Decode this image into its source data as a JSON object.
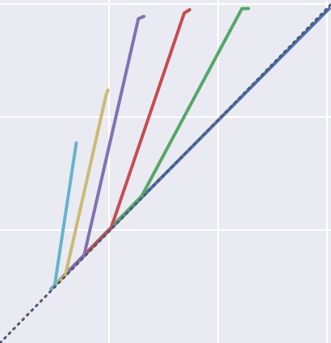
{
  "chart_data": {
    "type": "line",
    "title": "",
    "xlabel": "",
    "ylabel": "",
    "xlim": [
      0,
      3.04
    ],
    "ylim": [
      0,
      3.0
    ],
    "grid": true,
    "x_gridlines": [
      1,
      2,
      3
    ],
    "y_gridlines": [
      1,
      2,
      3
    ],
    "background_color": "#eaeaf2",
    "grid_color": "#ffffff",
    "series": [
      {
        "color": "#4c72b0",
        "style": "solid",
        "x": [
          0.47,
          3.02
        ],
        "y": [
          0.48,
          2.96
        ]
      },
      {
        "color": "#55a868",
        "style": "solid",
        "x": [
          0.47,
          1.3,
          2.22,
          2.28
        ],
        "y": [
          0.48,
          1.3,
          2.96,
          2.96
        ]
      },
      {
        "color": "#c44e52",
        "style": "solid",
        "x": [
          0.47,
          1.02,
          1.69,
          1.74
        ],
        "y": [
          0.48,
          1.02,
          2.92,
          2.95
        ]
      },
      {
        "color": "#8172b2",
        "style": "solid",
        "x": [
          0.47,
          0.77,
          1.27,
          1.32
        ],
        "y": [
          0.48,
          0.77,
          2.87,
          2.89
        ]
      },
      {
        "color": "#ccb974",
        "style": "solid",
        "x": [
          0.47,
          0.6,
          0.97,
          0.99
        ],
        "y": [
          0.48,
          0.6,
          2.18,
          2.24
        ]
      },
      {
        "color": "#64b5cd",
        "style": "solid",
        "x": [
          0.47,
          0.5,
          0.7
        ],
        "y": [
          0.48,
          0.5,
          1.77
        ]
      },
      {
        "color": "#4c5a73",
        "style": "dotted",
        "x": [
          0.0,
          3.04
        ],
        "y": [
          0.0,
          3.0
        ]
      }
    ]
  }
}
